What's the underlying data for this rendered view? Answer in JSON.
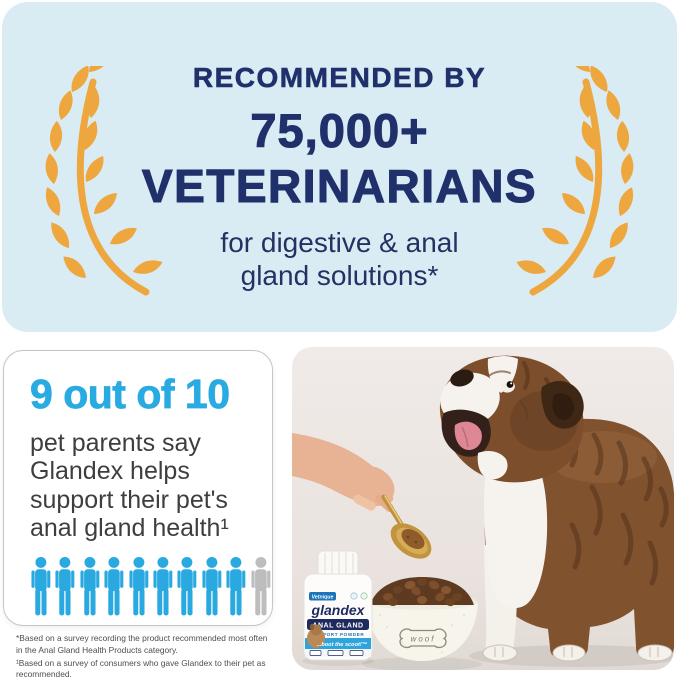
{
  "top_banner": {
    "bg_color": "#D9ECF4",
    "text_color": "#20306B",
    "laurel_color": "#EEA73F",
    "eyebrow": "RECOMMENDED BY",
    "stat": "75,000+",
    "title": "VETERINARIANS",
    "subtitle_line1": "for digestive & anal",
    "subtitle_line2": "gland solutions*"
  },
  "stat_card": {
    "headline": "9 out of 10",
    "headline_color": "#29ABE2",
    "body_line1": "pet parents say",
    "body_line2": "Glandex helps",
    "body_line3": "support their pet's",
    "body_line4": "anal gland health¹",
    "people": {
      "total": 10,
      "filled": 9,
      "filled_color": "#29A9DF",
      "empty_color": "#BDBDBD"
    }
  },
  "footnotes": {
    "note1": "*Based on a survey recording the product recommended most often in the Anal Gland Health Products category.",
    "note2": "¹Based on a survey of consumers who gave Glandex to their pet as recommended."
  },
  "photo_panel": {
    "bottle": {
      "brand": "Vetnique",
      "name": "glandex",
      "badge": "ANAL GLAND",
      "subbadge": "SUPPORT POWDER",
      "tagline": "...boot the scoot!™"
    },
    "bowl_text": "woof"
  }
}
